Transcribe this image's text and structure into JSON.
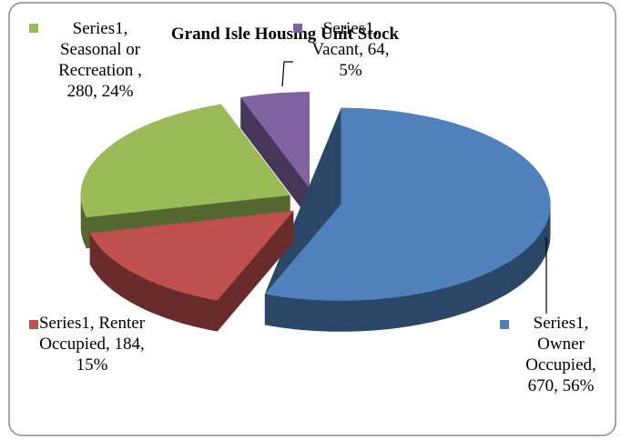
{
  "chart_data": {
    "type": "pie3d",
    "title": "Grand Isle Housing Unit Stock",
    "series": [
      {
        "name": "Series1",
        "values": [
          670,
          184,
          280,
          64
        ],
        "colors": [
          "#4f81bd",
          "#c0504d",
          "#9bbb59",
          "#8064a2"
        ],
        "value_labels": [
          "Series1, Owner Occupied, 670, 56%",
          "Series1, Renter Occupied, 184, 15%",
          "Series1, Seasonal or Recreation , 280, 24%",
          "Series1, Vacant, 64, 5%"
        ]
      }
    ]
  }
}
